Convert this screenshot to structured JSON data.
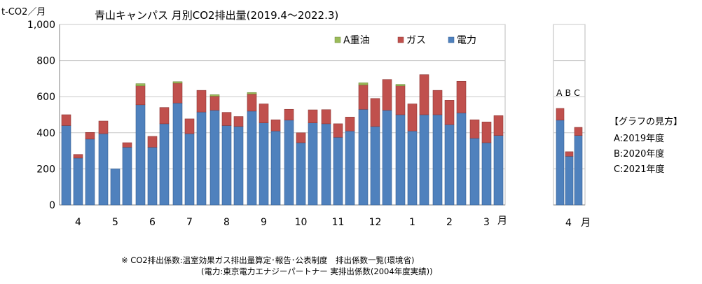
{
  "title": "青山キャンパス 月別CO2排出量(2019.4～2022.3)",
  "y_unit_label": "t-CO2／月",
  "x_unit_label": "月",
  "abc_label": "A B C",
  "note": {
    "line1": "※ CO2排出係数:温室効果ガス排出量算定･報告･公表制度　排出係数一覧(環境省)",
    "line2": "(電力:東京電力エナジーパートナー 実排出係数(2004年度実績))"
  },
  "guide": {
    "title": "【グラフの見方】",
    "a": "A:2019年度",
    "b": "B:2020年度",
    "c": "C:2021年度"
  },
  "colors": {
    "electricity": "#4f81bd",
    "gas": "#c0504d",
    "heavy_oil": "#9bbb59"
  },
  "chart_data": [
    {
      "type": "bar",
      "stacked": true,
      "title": "青山キャンパス 月別CO2排出量(2019.4～2022.3)",
      "ylabel": "t-CO2／月",
      "xlabel": "月",
      "ylim": [
        0,
        1000
      ],
      "yticks": [
        0,
        200,
        400,
        600,
        800,
        1000
      ],
      "ytick_labels": [
        "0",
        "200",
        "400",
        "600",
        "800",
        "1,000"
      ],
      "legend_position": "top-right",
      "categories": [
        "4",
        "5",
        "6",
        "7",
        "8",
        "9",
        "10",
        "11",
        "12",
        "1",
        "2",
        "3"
      ],
      "bars_per_category": [
        "A",
        "B",
        "C"
      ],
      "series": [
        {
          "name": "電力",
          "color": "#4f81bd",
          "values": [
            [
              440,
              260,
              365
            ],
            [
              395,
              200,
              320
            ],
            [
              555,
              320,
              450
            ],
            [
              565,
              395,
              515
            ],
            [
              525,
              440,
              435
            ],
            [
              520,
              455,
              410
            ],
            [
              470,
              345,
              455
            ],
            [
              450,
              375,
              410
            ],
            [
              530,
              435,
              525
            ],
            [
              500,
              410,
              500
            ],
            [
              500,
              445,
              510
            ],
            [
              370,
              345,
              385
            ]
          ]
        },
        {
          "name": "ガス",
          "color": "#c0504d",
          "values": [
            [
              60,
              20,
              37
            ],
            [
              70,
              0,
              25
            ],
            [
              105,
              60,
              90
            ],
            [
              110,
              82,
              120
            ],
            [
              78,
              73,
              55
            ],
            [
              95,
              105,
              62
            ],
            [
              60,
              55,
              72
            ],
            [
              78,
              75,
              77
            ],
            [
              135,
              155,
              170
            ],
            [
              160,
              150,
              222
            ],
            [
              135,
              135,
              175
            ],
            [
              102,
              115,
              110
            ]
          ]
        },
        {
          "name": "A重油",
          "color": "#9bbb59",
          "values": [
            [
              0,
              0,
              0
            ],
            [
              0,
              0,
              0
            ],
            [
              12,
              0,
              0
            ],
            [
              8,
              0,
              0
            ],
            [
              8,
              0,
              0
            ],
            [
              8,
              0,
              0
            ],
            [
              0,
              0,
              0
            ],
            [
              0,
              0,
              0
            ],
            [
              12,
              0,
              0
            ],
            [
              8,
              0,
              0
            ],
            [
              0,
              0,
              0
            ],
            [
              0,
              0,
              0
            ]
          ]
        }
      ]
    },
    {
      "type": "bar",
      "stacked": true,
      "ylim": [
        0,
        1000
      ],
      "categories": [
        "4"
      ],
      "bars_per_category": [
        "A",
        "B",
        "C"
      ],
      "series": [
        {
          "name": "電力",
          "values": [
            [
              470,
              270,
              385
            ]
          ]
        },
        {
          "name": "ガス",
          "values": [
            [
              65,
              25,
              45
            ]
          ]
        },
        {
          "name": "A重油",
          "values": [
            [
              0,
              0,
              0
            ]
          ]
        }
      ]
    }
  ]
}
